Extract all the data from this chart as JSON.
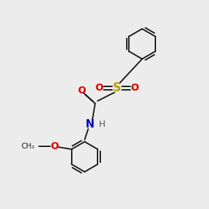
{
  "bg_color": "#ececec",
  "bond_color": "#1a1a1a",
  "bond_width": 1.4,
  "S_color": "#b8a000",
  "O_color": "#dd0000",
  "N_color": "#0000bb",
  "H_color": "#555555",
  "C_color": "#1a1a1a",
  "figsize": [
    3.0,
    3.0
  ],
  "dpi": 100,
  "xlim": [
    0,
    10
  ],
  "ylim": [
    0,
    10
  ]
}
